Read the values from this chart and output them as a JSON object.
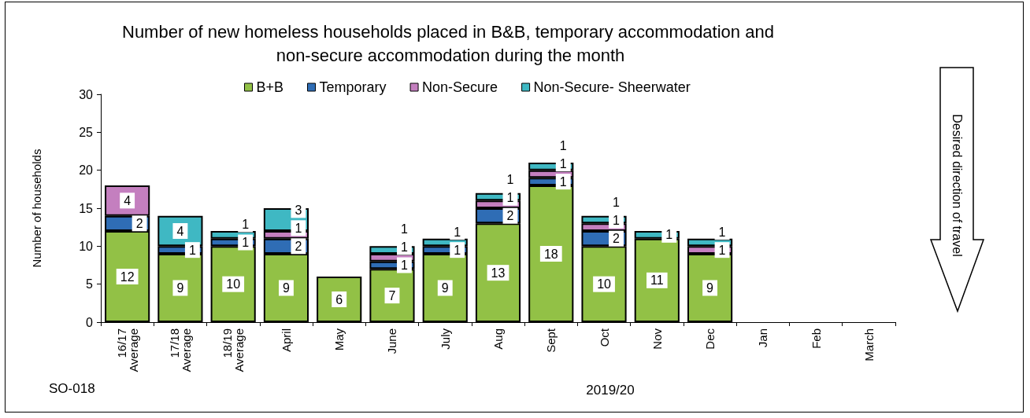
{
  "chart_data": {
    "type": "bar",
    "title": "Number of new homeless households placed in B&B, temporary accommodation and non-secure accommodation during the month",
    "xlabel": "2019/20",
    "ylabel": "Number of households",
    "annotations": [
      "SO-018",
      "Desired direction of travel"
    ],
    "categories": [
      "16/17\nAverage",
      "17/18\nAverage",
      "18/19\nAverage",
      "April",
      "May",
      "June",
      "July",
      "Aug",
      "Sept",
      "Oct",
      "Nov",
      "Dec",
      "Jan",
      "Feb",
      "March"
    ],
    "series": [
      {
        "name": "B+B",
        "color": "#92c146",
        "values": [
          12,
          9,
          10,
          9,
          6,
          7,
          9,
          13,
          18,
          10,
          11,
          9,
          null,
          null,
          null
        ]
      },
      {
        "name": "Temporary",
        "color": "#2f6db5",
        "values": [
          2,
          1,
          1,
          2,
          null,
          1,
          1,
          2,
          1,
          2,
          null,
          null,
          null,
          null,
          null
        ]
      },
      {
        "name": "Non-Secure",
        "color": "#c47fbf",
        "values": [
          4,
          null,
          null,
          1,
          null,
          1,
          null,
          1,
          1,
          1,
          null,
          1,
          null,
          null,
          null
        ]
      },
      {
        "name": "Non-Secure- Sheerwater",
        "color": "#3fb8c3",
        "values": [
          null,
          4,
          1,
          3,
          null,
          1,
          1,
          1,
          1,
          1,
          1,
          1,
          null,
          null,
          null
        ]
      }
    ],
    "stacked": true,
    "data_labels": true,
    "ylim": [
      0,
      30
    ],
    "yticks": [
      0,
      5,
      10,
      15,
      20,
      25,
      30
    ],
    "grid": false,
    "legend": "top"
  }
}
